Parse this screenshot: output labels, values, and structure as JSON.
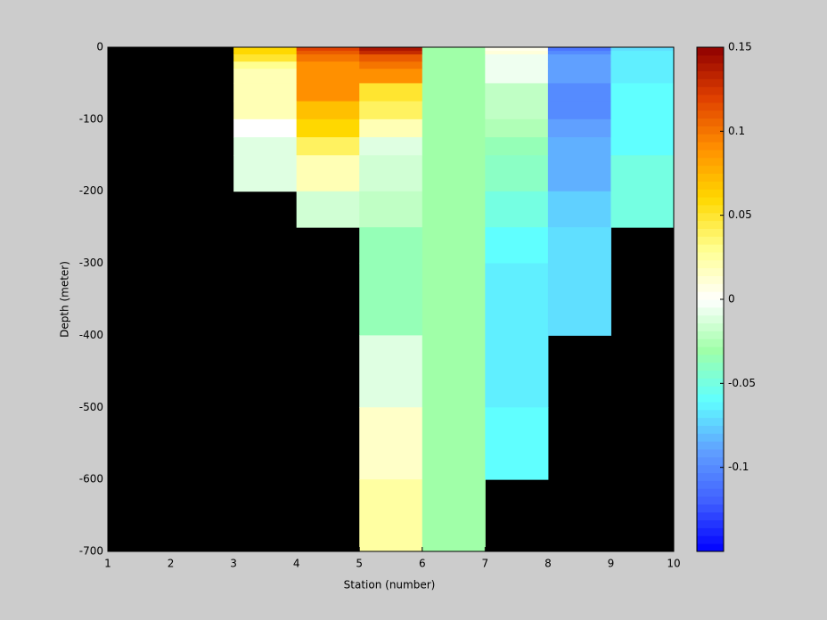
{
  "chart_data": {
    "type": "heatmap",
    "xlabel": "Station (number)",
    "ylabel": "Depth (meter)",
    "x_edges": [
      1,
      2,
      3,
      4,
      5,
      6,
      7,
      8,
      9,
      10
    ],
    "y_edges": [
      0,
      -5,
      -10,
      -20,
      -30,
      -50,
      -75,
      -100,
      -125,
      -150,
      -200,
      -250,
      -300,
      -400,
      -500,
      -600,
      -700
    ],
    "xlim": [
      1,
      10
    ],
    "ylim": [
      -700,
      0
    ],
    "xticks": [
      1,
      2,
      3,
      4,
      5,
      6,
      7,
      8,
      9,
      10
    ],
    "yticks": [
      0,
      -100,
      -200,
      -300,
      -400,
      -500,
      -600,
      -700
    ],
    "clim": [
      -0.15,
      0.15
    ],
    "cticks": [
      -0.1,
      -0.05,
      0,
      0.05,
      0.1,
      0.15
    ],
    "colormap": [
      "#0000ff",
      "#4060ff",
      "#60a0ff",
      "#60ffff",
      "#a0ffa8",
      "#ffffff",
      "#ffff90",
      "#ffd800",
      "#ff9000",
      "#e04000",
      "#900000"
    ],
    "missing_color": "#000000",
    "values": [
      [
        null,
        null,
        0.06,
        0.12,
        0.14,
        -0.03,
        0.005,
        -0.11,
        -0.07
      ],
      [
        null,
        null,
        0.06,
        0.11,
        0.13,
        -0.03,
        0.01,
        -0.1,
        -0.065
      ],
      [
        null,
        null,
        0.05,
        0.1,
        0.11,
        -0.03,
        -0.005,
        -0.09,
        -0.065
      ],
      [
        null,
        null,
        0.03,
        0.09,
        0.1,
        -0.03,
        -0.005,
        -0.09,
        -0.065
      ],
      [
        null,
        null,
        0.02,
        0.09,
        0.09,
        -0.03,
        -0.005,
        -0.09,
        -0.065
      ],
      [
        null,
        null,
        0.02,
        0.09,
        0.05,
        -0.03,
        -0.02,
        -0.1,
        -0.06
      ],
      [
        null,
        null,
        0.02,
        0.07,
        0.04,
        -0.03,
        -0.02,
        -0.1,
        -0.06
      ],
      [
        null,
        null,
        0,
        0.06,
        0.02,
        -0.03,
        -0.025,
        -0.09,
        -0.06
      ],
      [
        null,
        null,
        -0.01,
        0.04,
        -0.01,
        -0.03,
        -0.035,
        -0.085,
        -0.06
      ],
      [
        null,
        null,
        -0.01,
        0.02,
        -0.015,
        -0.03,
        -0.04,
        -0.085,
        -0.05
      ],
      [
        null,
        null,
        null,
        -0.015,
        -0.02,
        -0.03,
        -0.05,
        -0.075,
        -0.05
      ],
      [
        null,
        null,
        null,
        null,
        -0.035,
        -0.03,
        -0.06,
        -0.07,
        null
      ],
      [
        null,
        null,
        null,
        null,
        -0.035,
        -0.03,
        -0.065,
        -0.07,
        null
      ],
      [
        null,
        null,
        null,
        null,
        -0.01,
        -0.03,
        -0.065,
        null,
        null
      ],
      [
        null,
        null,
        null,
        null,
        0.015,
        -0.03,
        -0.06,
        null,
        null
      ],
      [
        null,
        null,
        null,
        null,
        0.025,
        -0.03,
        null,
        null,
        null
      ]
    ]
  }
}
